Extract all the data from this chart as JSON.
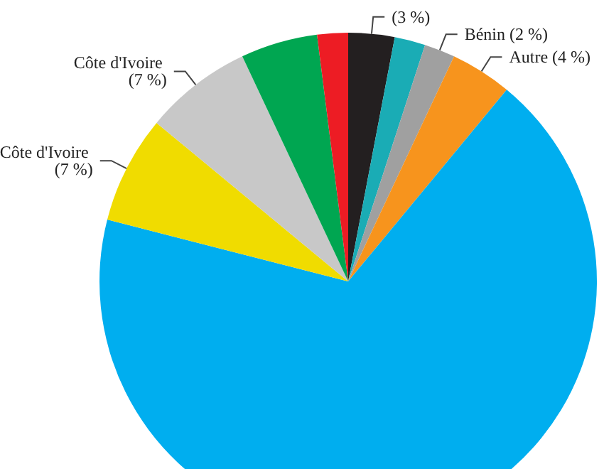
{
  "chart_data": {
    "type": "pie",
    "categories": [
      null,
      null,
      "Bénin",
      "Autre",
      null,
      "Côte d'Ivoire",
      "Côte d'Ivoire",
      null,
      null
    ],
    "values": [
      3,
      2,
      2,
      4,
      68,
      7,
      7,
      5,
      2
    ],
    "value_labels": [
      "(3 %)",
      null,
      "(2 %)",
      "(4 %)",
      null,
      "(7 %)",
      "(7 %)",
      null,
      null
    ],
    "colors": [
      "#231f20",
      "#1aacb5",
      "#a0a0a0",
      "#f7941d",
      "#00aeef",
      "#f0dc00",
      "#c8c8c8",
      "#00a651",
      "#ed1c24"
    ],
    "legend": false
  }
}
